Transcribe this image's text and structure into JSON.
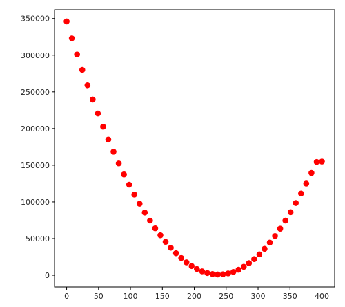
{
  "chart_data": {
    "type": "scatter",
    "title": "",
    "xlabel": "",
    "ylabel": "",
    "xlim": [
      -19,
      420
    ],
    "ylim": [
      -16000,
      362000
    ],
    "xticks": [
      0,
      50,
      100,
      150,
      200,
      250,
      300,
      350,
      400
    ],
    "yticks": [
      0,
      50000,
      100000,
      150000,
      200000,
      250000,
      300000,
      350000
    ],
    "grid": false,
    "legend": "none",
    "marker_color": "#ff0000",
    "series": [
      {
        "x": [
          0,
          8.16,
          16.33,
          24.49,
          32.65,
          40.82,
          48.98,
          57.14,
          65.31,
          73.47,
          81.63,
          89.8,
          97.96,
          106.12,
          114.29,
          122.45,
          130.61,
          138.78,
          146.94,
          155.1,
          163.27,
          171.43,
          179.59,
          187.76,
          195.92,
          204.08,
          212.24,
          220.41,
          228.57,
          236.73,
          244.9,
          253.06,
          261.22,
          269.39,
          277.55,
          285.71,
          293.88,
          302.04,
          310.2,
          318.37,
          326.53,
          334.69,
          342.86,
          351.02,
          359.18,
          367.35,
          375.51,
          383.67,
          391.84,
          400
        ],
        "y": [
          346000,
          323000,
          301000,
          280000,
          259000,
          239500,
          220500,
          202500,
          185000,
          168500,
          152500,
          137500,
          123500,
          110000,
          97500,
          85500,
          74500,
          64000,
          54500,
          45500,
          37500,
          30000,
          23500,
          17500,
          12500,
          8500,
          5300,
          3000,
          1600,
          1000,
          1300,
          2500,
          4500,
          7500,
          11500,
          16500,
          22000,
          28500,
          36000,
          44500,
          53500,
          63500,
          74500,
          86000,
          98500,
          111500,
          125000,
          139500,
          154500,
          155000
        ]
      }
    ]
  }
}
